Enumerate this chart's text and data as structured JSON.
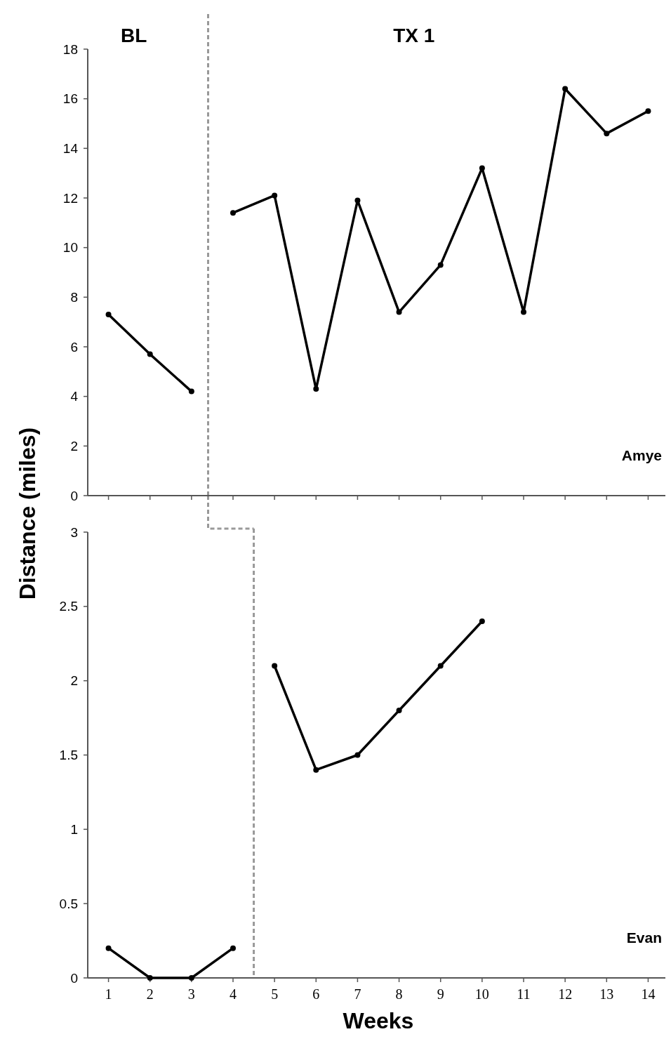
{
  "chart_data": [
    {
      "type": "line",
      "ylabel": "Distance (miles)",
      "xlim": [
        0.5,
        14.5
      ],
      "xticks": [
        1,
        2,
        3,
        4,
        5,
        6,
        7,
        8,
        9,
        10,
        11,
        12,
        13,
        14
      ],
      "ylim": [
        0,
        18
      ],
      "yticks": [
        0,
        2,
        4,
        6,
        8,
        10,
        12,
        14,
        16,
        18
      ],
      "tick_labels": "y",
      "marker": "circle",
      "line_style": "solid",
      "series": [
        {
          "color": "#000000",
          "x": [
            1,
            2,
            3
          ],
          "values": [
            7.3,
            5.7,
            4.2
          ]
        },
        {
          "color": "#000000",
          "x": [
            4,
            5,
            6,
            7,
            8,
            9,
            10,
            11,
            12,
            13,
            14
          ],
          "values": [
            11.4,
            12.1,
            4.3,
            11.9,
            7.4,
            9.3,
            13.2,
            7.4,
            16.4,
            14.6,
            15.5
          ]
        }
      ],
      "ref_lines": [
        {
          "axis": "x",
          "value": 3.4,
          "color": "#999999",
          "line_style": "dashed"
        }
      ],
      "annotations": [
        "BL",
        "TX 1",
        "Amye"
      ]
    },
    {
      "type": "line",
      "xlabel": "Weeks",
      "xlim": [
        0.5,
        14.5
      ],
      "xticks": [
        1,
        2,
        3,
        4,
        5,
        6,
        7,
        8,
        9,
        10,
        11,
        12,
        13,
        14
      ],
      "ylim": [
        0,
        3
      ],
      "yticks": [
        0,
        0.5,
        1,
        1.5,
        2,
        2.5,
        3
      ],
      "marker": "circle",
      "line_style": "solid",
      "series": [
        {
          "color": "#000000",
          "x": [
            1,
            2,
            3,
            4
          ],
          "values": [
            0.2,
            0,
            0,
            0.2
          ]
        },
        {
          "color": "#000000",
          "x": [
            5,
            6,
            7,
            8,
            9,
            10
          ],
          "values": [
            2.1,
            1.4,
            1.5,
            1.8,
            2.1,
            2.4
          ]
        }
      ],
      "ref_lines": [
        {
          "axis": "x",
          "value": 4.5,
          "color": "#999999",
          "line_style": "dashed"
        }
      ],
      "annotations": [
        "Evan"
      ]
    }
  ]
}
